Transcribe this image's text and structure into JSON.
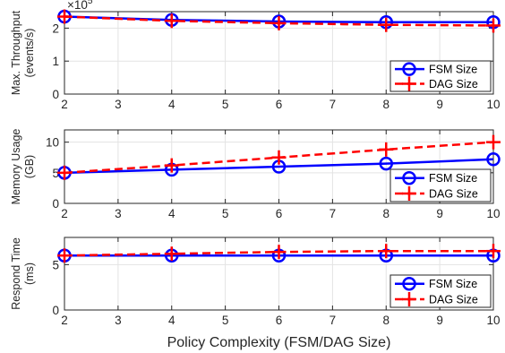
{
  "chart_data": [
    {
      "type": "line",
      "x": [
        2,
        4,
        6,
        8,
        10
      ],
      "xticks": [
        "2",
        "3",
        "4",
        "5",
        "6",
        "7",
        "8",
        "9",
        "10"
      ],
      "xlim": [
        2,
        10
      ],
      "ylim": [
        0,
        2.5
      ],
      "yticks": [
        "0",
        "1",
        "2"
      ],
      "ylabel": [
        "Max. Throughput",
        "(events/s)"
      ],
      "exponent": "×10",
      "exponent_power": "5",
      "grid": true,
      "legend_position": "bottom-right",
      "series": [
        {
          "name": "FSM Size",
          "values": [
            2.35,
            2.25,
            2.2,
            2.18,
            2.18
          ],
          "color": "#0000ff",
          "marker": "circle",
          "linestyle": "solid"
        },
        {
          "name": "DAG Size",
          "values": [
            2.35,
            2.22,
            2.15,
            2.1,
            2.08
          ],
          "color": "#ff0000",
          "marker": "plus",
          "linestyle": "dashed"
        }
      ]
    },
    {
      "type": "line",
      "x": [
        2,
        4,
        6,
        8,
        10
      ],
      "xticks": [
        "2",
        "3",
        "4",
        "5",
        "6",
        "7",
        "8",
        "9",
        "10"
      ],
      "xlim": [
        2,
        10
      ],
      "ylim": [
        0,
        12
      ],
      "yticks": [
        "0",
        "5",
        "10"
      ],
      "ylabel": [
        "Memory Usage",
        "(GB)"
      ],
      "grid": true,
      "legend_position": "bottom-right",
      "series": [
        {
          "name": "FSM Size",
          "values": [
            5.0,
            5.5,
            6.0,
            6.5,
            7.2
          ],
          "color": "#0000ff",
          "marker": "circle",
          "linestyle": "solid"
        },
        {
          "name": "DAG Size",
          "values": [
            5.0,
            6.2,
            7.5,
            8.8,
            10.0
          ],
          "color": "#ff0000",
          "marker": "plus",
          "linestyle": "dashed"
        }
      ]
    },
    {
      "type": "line",
      "x": [
        2,
        4,
        6,
        8,
        10
      ],
      "xticks": [
        "2",
        "3",
        "4",
        "5",
        "6",
        "7",
        "8",
        "9",
        "10"
      ],
      "xlim": [
        2,
        10
      ],
      "ylim": [
        0,
        8
      ],
      "yticks": [
        "0",
        "5"
      ],
      "ylabel": [
        "Respond Time",
        "(ms)"
      ],
      "xlabel": "Policy Complexity (FSM/DAG Size)",
      "grid": true,
      "legend_position": "bottom-right",
      "series": [
        {
          "name": "FSM Size",
          "values": [
            6.0,
            6.0,
            6.0,
            6.0,
            6.0
          ],
          "color": "#0000ff",
          "marker": "circle",
          "linestyle": "solid"
        },
        {
          "name": "DAG Size",
          "values": [
            6.0,
            6.2,
            6.4,
            6.5,
            6.5
          ],
          "color": "#ff0000",
          "marker": "plus",
          "linestyle": "dashed"
        }
      ]
    }
  ]
}
